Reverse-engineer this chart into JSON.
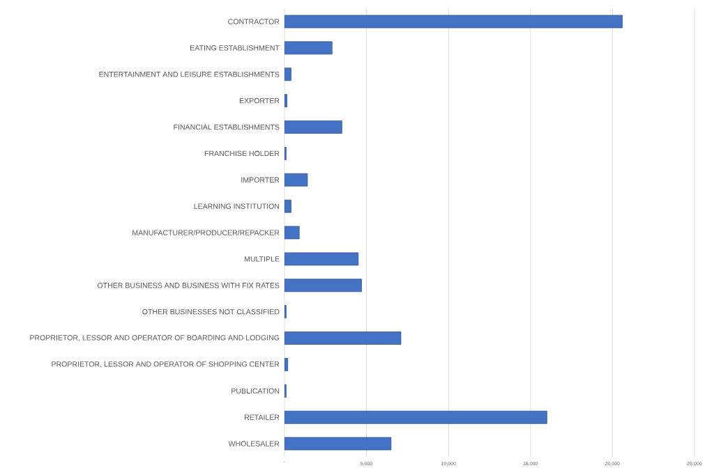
{
  "chart_data": {
    "type": "bar",
    "orientation": "horizontal",
    "categories": [
      "CONTRACTOR",
      "EATING ESTABLISHMENT",
      "ENTERTAINMENT AND LEISURE ESTABLISHMENTS",
      "EXPORTER",
      "FINANCIAL ESTABLISHMENTS",
      "FRANCHISE HOLDER",
      "IMPORTER",
      "LEARNING INSTITUTION",
      "MANUFACTURER/PRODUCER/REPACKER",
      "MULTIPLE",
      "OTHER BUSINESS AND BUSINESS WITH FIX RATES",
      "OTHER BUSINESSES NOT CLASSIFIED",
      "PROPRIETOR, LESSOR AND OPERATOR OF BOARDING AND LODGING",
      "PROPRIETOR, LESSOR AND OPERATOR OF SHOPPING CENTER",
      "PUBLICATION",
      "RETAILER",
      "WHOLESALER"
    ],
    "values": [
      20600,
      2900,
      400,
      150,
      3500,
      100,
      1400,
      400,
      900,
      4500,
      4700,
      100,
      7100,
      200,
      100,
      16000,
      6500
    ],
    "color": "#4472c4",
    "xlim": [
      0,
      25000
    ],
    "xticks": [
      {
        "value": 0,
        "label": "-"
      },
      {
        "value": 5000,
        "label": "5,000"
      },
      {
        "value": 10000,
        "label": "10,000"
      },
      {
        "value": 15000,
        "label": "15,000"
      },
      {
        "value": 20000,
        "label": "20,000"
      },
      {
        "value": 25000,
        "label": "25,000"
      }
    ],
    "grid": "x"
  }
}
